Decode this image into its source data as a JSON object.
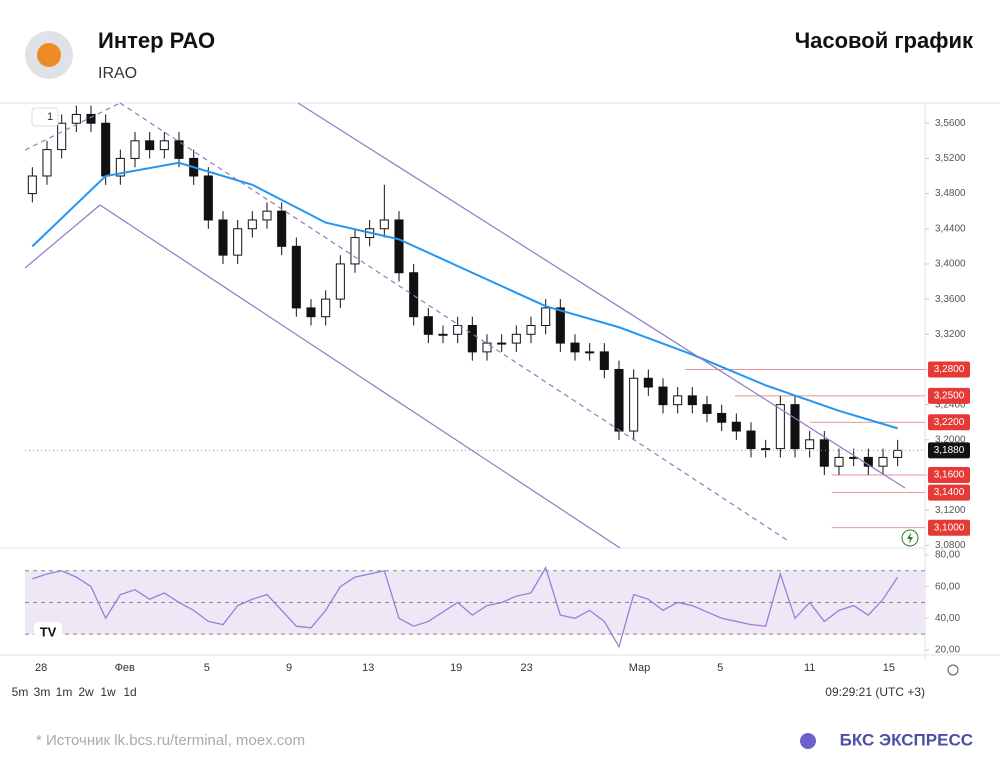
{
  "chart_data": {
    "type": "candlestick",
    "title": "Интер РАО",
    "subtitle": "IRAO",
    "annotation": "Часовой график",
    "xlim": [
      -0.5,
      59.5
    ],
    "xticks": [
      {
        "value": 0.6,
        "label": "28"
      },
      {
        "value": 6.3,
        "label": "Фев"
      },
      {
        "value": 11.9,
        "label": "5"
      },
      {
        "value": 17.5,
        "label": "9"
      },
      {
        "value": 22.9,
        "label": "13"
      },
      {
        "value": 28.9,
        "label": "19"
      },
      {
        "value": 33.7,
        "label": "23"
      },
      {
        "value": 41.4,
        "label": "Мар"
      },
      {
        "value": 46.9,
        "label": "5"
      },
      {
        "value": 53.0,
        "label": "11"
      },
      {
        "value": 58.4,
        "label": "15"
      }
    ],
    "ylim": [
      3.077,
      3.583
    ],
    "yticks": [
      {
        "value": 3.08,
        "label": "3,0800"
      },
      {
        "value": 3.12,
        "label": "3,1200"
      },
      {
        "value": 3.16,
        "label": "3,1600"
      },
      {
        "value": 3.2,
        "label": "3,2000"
      },
      {
        "value": 3.24,
        "label": "3,2400"
      },
      {
        "value": 3.28,
        "label": "3,2800"
      },
      {
        "value": 3.32,
        "label": "3,3200"
      },
      {
        "value": 3.36,
        "label": "3,3600"
      },
      {
        "value": 3.4,
        "label": "3,4000"
      },
      {
        "value": 3.44,
        "label": "3,4400"
      },
      {
        "value": 3.48,
        "label": "3,4800"
      },
      {
        "value": 3.52,
        "label": "3,5200"
      },
      {
        "value": 3.56,
        "label": "3,5600"
      }
    ],
    "opens": [
      3.48,
      3.5,
      3.53,
      3.56,
      3.57,
      3.56,
      3.5,
      3.52,
      3.54,
      3.53,
      3.54,
      3.52,
      3.5,
      3.45,
      3.41,
      3.44,
      3.45,
      3.46,
      3.42,
      3.35,
      3.34,
      3.36,
      3.4,
      3.43,
      3.44,
      3.45,
      3.39,
      3.34,
      3.32,
      3.32,
      3.33,
      3.3,
      3.31,
      3.31,
      3.32,
      3.33,
      3.35,
      3.31,
      3.3,
      3.3,
      3.28,
      3.21,
      3.27,
      3.26,
      3.24,
      3.25,
      3.24,
      3.23,
      3.22,
      3.21,
      3.19,
      3.19,
      3.24,
      3.19,
      3.2,
      3.17,
      3.18,
      3.18,
      3.17,
      3.18
    ],
    "highs": [
      3.51,
      3.54,
      3.57,
      3.58,
      3.58,
      3.57,
      3.53,
      3.55,
      3.55,
      3.55,
      3.55,
      3.53,
      3.51,
      3.46,
      3.45,
      3.46,
      3.47,
      3.47,
      3.43,
      3.36,
      3.37,
      3.41,
      3.44,
      3.45,
      3.49,
      3.46,
      3.4,
      3.35,
      3.33,
      3.34,
      3.34,
      3.32,
      3.32,
      3.33,
      3.34,
      3.36,
      3.36,
      3.32,
      3.31,
      3.31,
      3.29,
      3.28,
      3.28,
      3.27,
      3.26,
      3.26,
      3.25,
      3.24,
      3.23,
      3.22,
      3.2,
      3.25,
      3.25,
      3.21,
      3.21,
      3.19,
      3.19,
      3.19,
      3.19,
      3.2
    ],
    "lows": [
      3.47,
      3.49,
      3.52,
      3.55,
      3.55,
      3.49,
      3.49,
      3.51,
      3.52,
      3.52,
      3.51,
      3.49,
      3.44,
      3.4,
      3.4,
      3.43,
      3.44,
      3.41,
      3.34,
      3.33,
      3.33,
      3.35,
      3.39,
      3.42,
      3.43,
      3.38,
      3.33,
      3.31,
      3.31,
      3.31,
      3.29,
      3.29,
      3.3,
      3.3,
      3.31,
      3.32,
      3.3,
      3.29,
      3.29,
      3.27,
      3.2,
      3.2,
      3.25,
      3.23,
      3.23,
      3.23,
      3.22,
      3.21,
      3.2,
      3.18,
      3.18,
      3.18,
      3.18,
      3.18,
      3.16,
      3.16,
      3.17,
      3.16,
      3.16,
      3.17
    ],
    "closes": [
      3.5,
      3.53,
      3.56,
      3.57,
      3.56,
      3.5,
      3.52,
      3.54,
      3.53,
      3.54,
      3.52,
      3.5,
      3.45,
      3.41,
      3.44,
      3.45,
      3.46,
      3.42,
      3.35,
      3.34,
      3.36,
      3.4,
      3.43,
      3.44,
      3.45,
      3.39,
      3.34,
      3.32,
      3.32,
      3.33,
      3.3,
      3.31,
      3.31,
      3.32,
      3.33,
      3.35,
      3.31,
      3.3,
      3.3,
      3.28,
      3.21,
      3.27,
      3.26,
      3.24,
      3.25,
      3.24,
      3.23,
      3.22,
      3.21,
      3.19,
      3.19,
      3.24,
      3.19,
      3.2,
      3.17,
      3.18,
      3.18,
      3.17,
      3.18,
      3.188
    ],
    "ma": {
      "color": "#2196f3",
      "x": [
        0,
        5,
        10,
        15,
        20,
        25,
        30,
        35,
        40,
        45,
        50,
        55,
        59
      ],
      "values": [
        3.42,
        3.5,
        3.515,
        3.49,
        3.447,
        3.428,
        3.39,
        3.352,
        3.328,
        3.297,
        3.262,
        3.233,
        3.213
      ]
    },
    "levels": [
      {
        "value": 3.28,
        "label": "3,2800",
        "from": 44.5
      },
      {
        "value": 3.25,
        "label": "3,2500",
        "from": 47.9
      },
      {
        "value": 3.22,
        "label": "3,2200",
        "from": 53
      },
      {
        "value": 3.16,
        "label": "3,1600",
        "from": 54.5
      },
      {
        "value": 3.14,
        "label": "3,1400",
        "from": 54.5
      },
      {
        "value": 3.1,
        "label": "3,1000",
        "from": 54.5
      }
    ],
    "last": {
      "value": 3.188,
      "label": "3,1880"
    },
    "rsi": {
      "color": "#9c7ed6",
      "ylim": [
        16.8,
        84.4
      ],
      "yticks": [
        {
          "value": 20,
          "label": "20,00"
        },
        {
          "value": 40,
          "label": "40,00"
        },
        {
          "value": 60,
          "label": "60,00"
        },
        {
          "value": 80,
          "label": "80,00"
        }
      ],
      "bands": [
        30,
        50,
        70
      ],
      "values": [
        65,
        68,
        70,
        66,
        60,
        40,
        55,
        58,
        52,
        56,
        50,
        45,
        38,
        36,
        48,
        52,
        55,
        45,
        35,
        34,
        45,
        60,
        66,
        68,
        70,
        40,
        35,
        38,
        44,
        50,
        42,
        48,
        50,
        54,
        56,
        72,
        42,
        40,
        45,
        38,
        22,
        55,
        52,
        45,
        50,
        48,
        44,
        40,
        38,
        36,
        35,
        68,
        40,
        50,
        38,
        45,
        48,
        42,
        52,
        66
      ]
    }
  },
  "toolbar": {
    "intervals": [
      "5m",
      "3m",
      "1m",
      "2w",
      "1w",
      "1d"
    ],
    "time": "09:29:21 (UTC +3)",
    "indicator": "1"
  },
  "footer": {
    "source": "*  Источник lk.bcs.ru/terminal, moex.com",
    "brand": "БКС ЭКСПРЕСС"
  }
}
